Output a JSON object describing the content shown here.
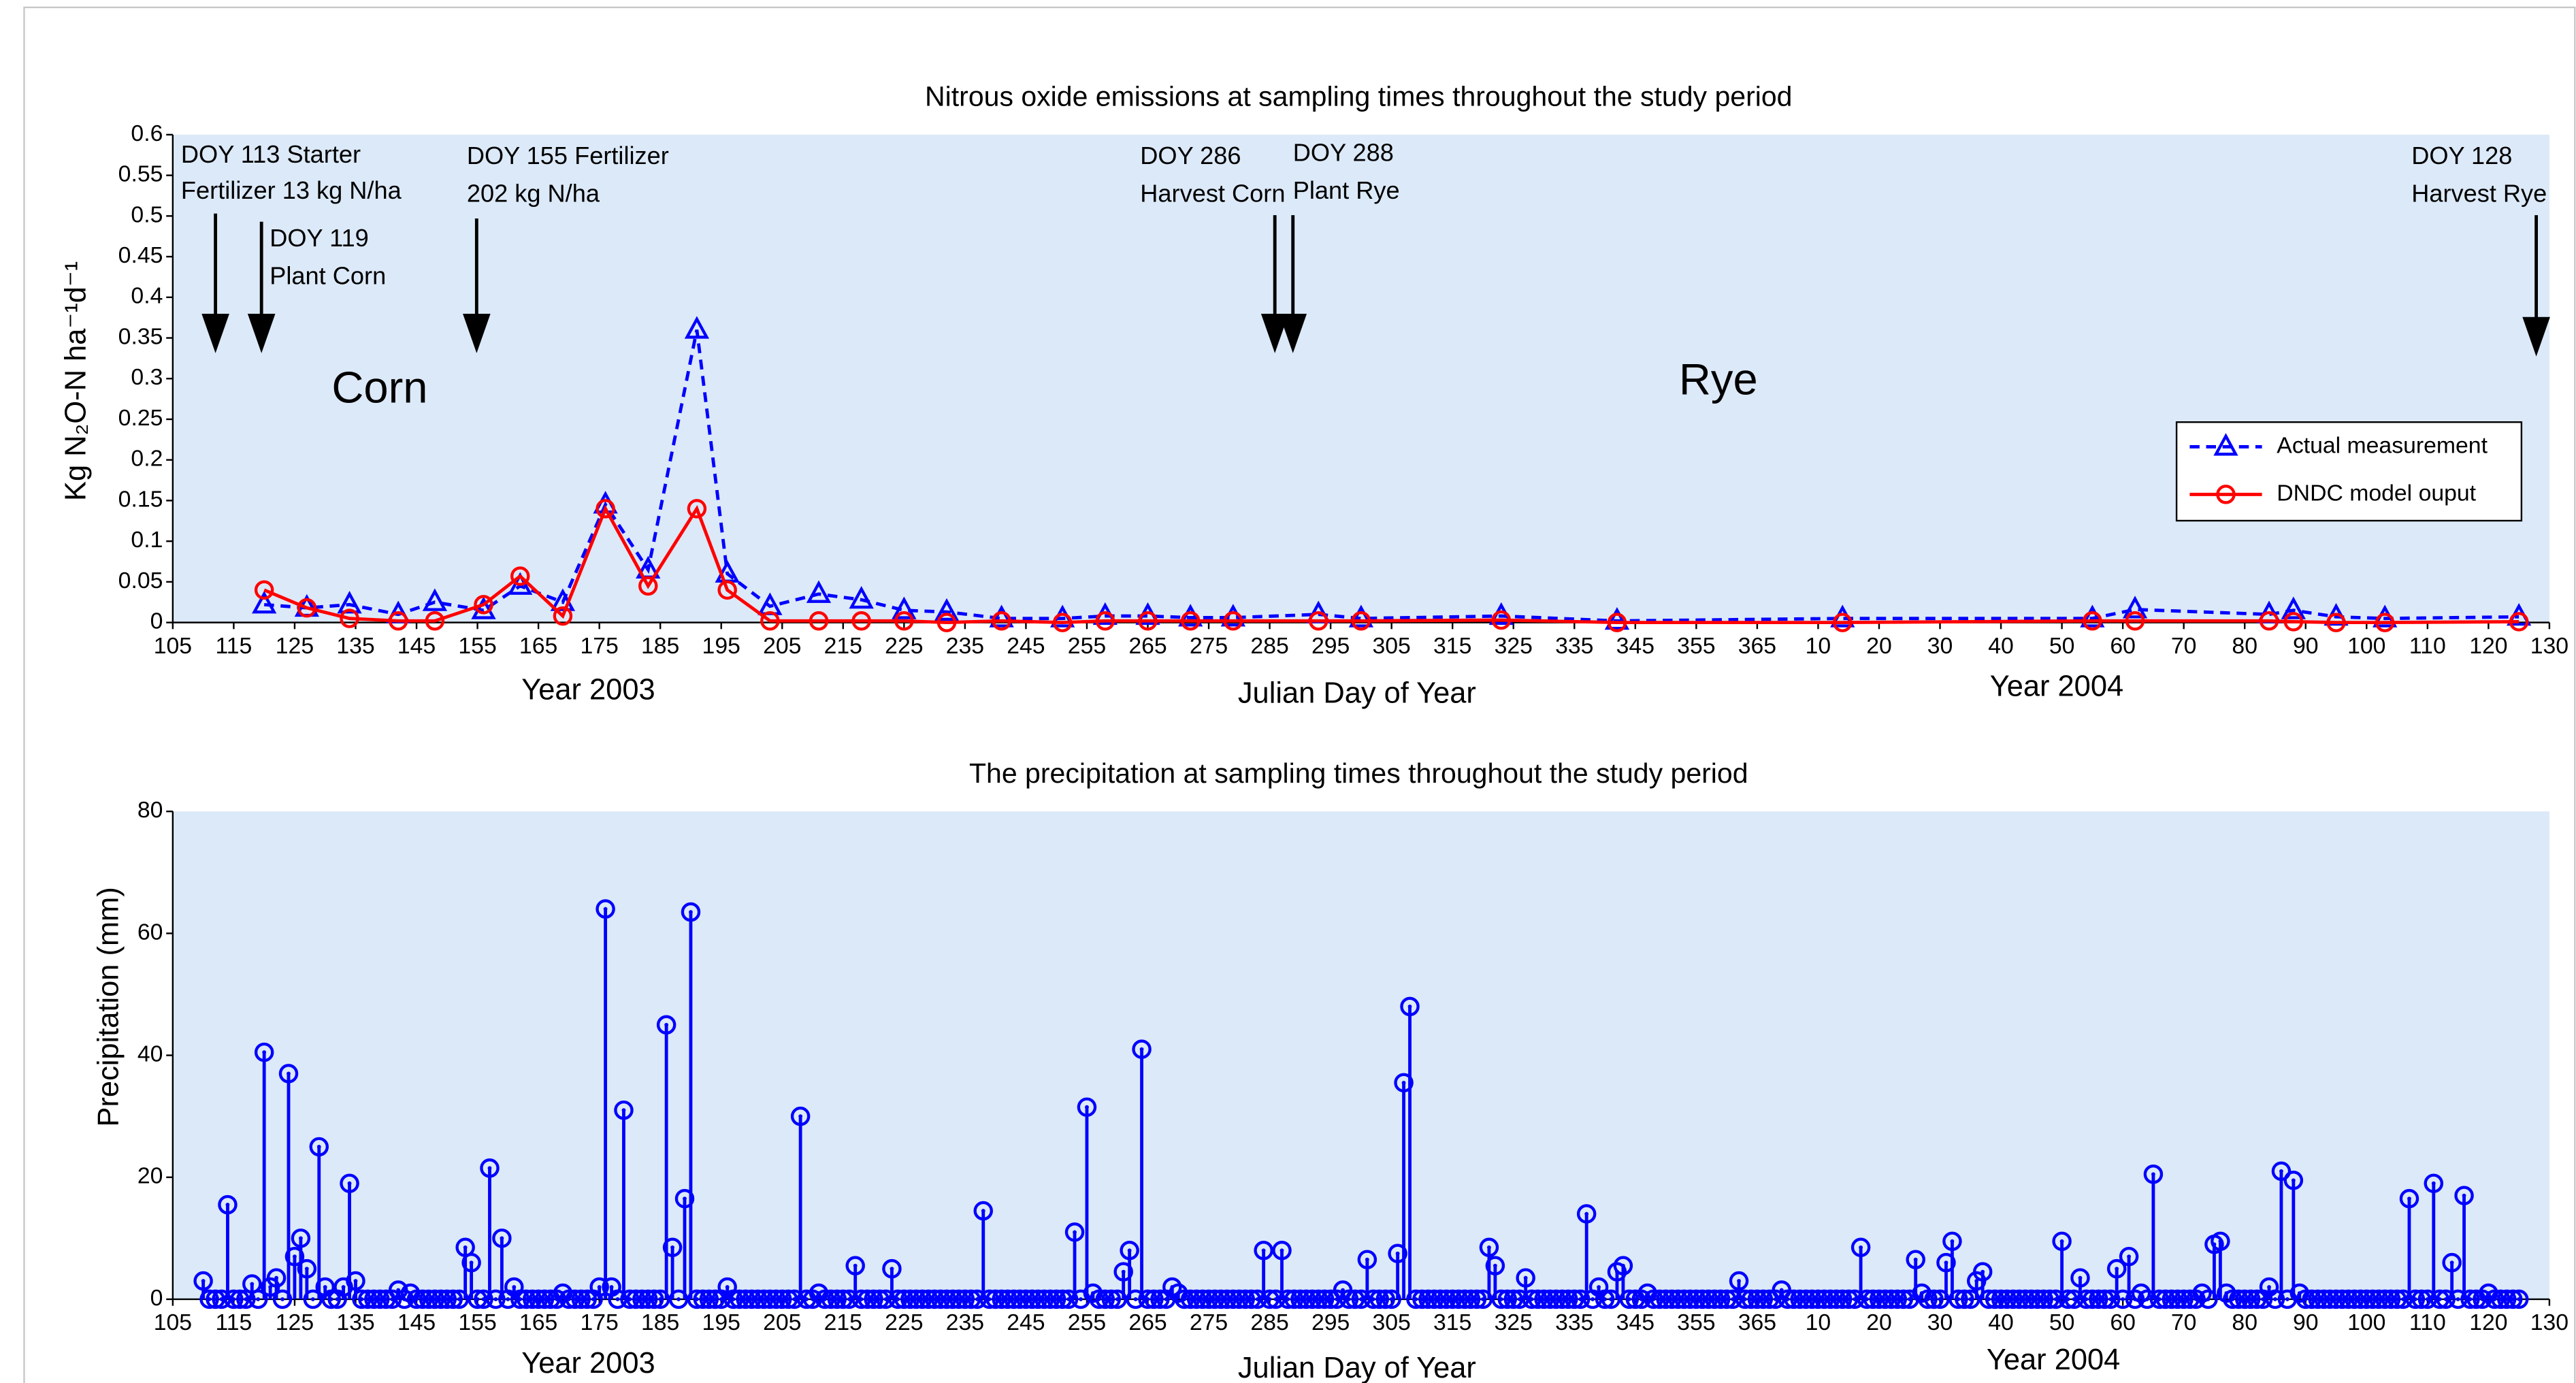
{
  "chart_data": [
    {
      "type": "line",
      "title": "Nitrous oxide emissions at sampling times throughout the study period",
      "xlabel": "Julian Day of Year",
      "ylabel": "Kg N₂O-N ha⁻¹d⁻¹",
      "period_labels": [
        "Year 2003",
        "Year 2004"
      ],
      "crop_labels": [
        "Corn",
        "Rye"
      ],
      "annotations": [
        {
          "lines": [
            "DOY 113 Starter",
            "Fertilizer 13 kg N/ha"
          ]
        },
        {
          "lines": [
            "DOY 119",
            "Plant Corn"
          ]
        },
        {
          "lines": [
            "DOY 155 Fertilizer",
            "202 kg N/ha"
          ]
        },
        {
          "lines": [
            "DOY 286",
            "Harvest Corn"
          ]
        },
        {
          "lines": [
            "DOY 288",
            "Plant Rye"
          ]
        },
        {
          "lines": [
            "DOY 128",
            "Harvest Rye"
          ]
        }
      ],
      "x": [
        120,
        127,
        134,
        142,
        148,
        156,
        162,
        169,
        176,
        183,
        191,
        196,
        203,
        211,
        218,
        225,
        232,
        241,
        251,
        258,
        265,
        272,
        279,
        293,
        300,
        323,
        342,
        379,
        420,
        427,
        449,
        453,
        460,
        468,
        490
      ],
      "series": [
        {
          "name": "Actual measurement",
          "color": "#0000ff",
          "marker": "triangle",
          "linestyle": "dashed",
          "values": [
            0.022,
            0.018,
            0.022,
            0.01,
            0.025,
            0.015,
            0.045,
            0.025,
            0.145,
            0.065,
            0.36,
            0.06,
            0.02,
            0.035,
            0.028,
            0.015,
            0.013,
            0.005,
            0.005,
            0.008,
            0.008,
            0.006,
            0.006,
            0.01,
            0.005,
            0.008,
            0.002,
            0.005,
            0.005,
            0.016,
            0.01,
            0.015,
            0.007,
            0.005,
            0.007
          ]
        },
        {
          "name": "DNDC model ouput",
          "color": "#ff0000",
          "marker": "circle",
          "linestyle": "solid",
          "values": [
            0.04,
            0.018,
            0.005,
            0.002,
            0.002,
            0.022,
            0.057,
            0.008,
            0.14,
            0.045,
            0.14,
            0.04,
            0.002,
            0.002,
            0.002,
            0.002,
            0,
            0.002,
            0,
            0.002,
            0.002,
            0.002,
            0.002,
            0.002,
            0.002,
            0.003,
            0,
            0,
            0.002,
            0.002,
            0.002,
            0.001,
            0,
            0,
            0.001
          ]
        }
      ],
      "xlim": [
        105,
        495
      ],
      "xticks": [
        105,
        115,
        125,
        135,
        145,
        155,
        165,
        175,
        185,
        195,
        205,
        215,
        225,
        235,
        245,
        255,
        265,
        275,
        285,
        295,
        305,
        315,
        325,
        335,
        345,
        355,
        365,
        {
          "value": 375,
          "label": "10"
        },
        {
          "value": 385,
          "label": "20"
        },
        {
          "value": 395,
          "label": "30"
        },
        {
          "value": 405,
          "label": "40"
        },
        {
          "value": 415,
          "label": "50"
        },
        {
          "value": 425,
          "label": "60"
        },
        {
          "value": 435,
          "label": "70"
        },
        {
          "value": 445,
          "label": "80"
        },
        {
          "value": 455,
          "label": "90"
        },
        {
          "value": 465,
          "label": "100"
        },
        {
          "value": 475,
          "label": "110"
        },
        {
          "value": 485,
          "label": "120"
        },
        {
          "value": 495,
          "label": "130"
        }
      ],
      "ylim": [
        0,
        0.6
      ],
      "yticks": [
        0,
        0.05,
        0.1,
        0.15,
        0.2,
        0.25,
        0.3,
        0.35,
        0.4,
        0.45,
        0.5,
        0.55,
        0.6
      ],
      "background": "#dce9f8",
      "legend": "right"
    },
    {
      "type": "stem",
      "title": "The precipitation at sampling times throughout the study period",
      "xlabel": "Julian Day of Year",
      "ylabel": "Precipitation (mm)",
      "period_labels": [
        "Year 2003",
        "Year 2004"
      ],
      "color": "#0000ff",
      "marker": "circle",
      "x": [
        110,
        111,
        112,
        113,
        114,
        115,
        116,
        117,
        118,
        119,
        120,
        121,
        122,
        123,
        124,
        125,
        126,
        127,
        128,
        129,
        130,
        131,
        132,
        133,
        134,
        135,
        136,
        137,
        138,
        139,
        140,
        141,
        142,
        143,
        144,
        145,
        146,
        147,
        148,
        149,
        150,
        151,
        152,
        153,
        154,
        155,
        156,
        157,
        158,
        159,
        160,
        161,
        162,
        163,
        164,
        165,
        166,
        167,
        168,
        169,
        170,
        171,
        172,
        173,
        174,
        175,
        176,
        177,
        178,
        179,
        180,
        181,
        182,
        183,
        184,
        185,
        186,
        187,
        188,
        189,
        190,
        191,
        192,
        193,
        194,
        195,
        196,
        197,
        198,
        199,
        200,
        201,
        202,
        203,
        204,
        205,
        206,
        207,
        208,
        209,
        210,
        211,
        212,
        213,
        214,
        215,
        216,
        217,
        218,
        219,
        220,
        221,
        222,
        223,
        224,
        225,
        226,
        227,
        228,
        229,
        230,
        231,
        232,
        233,
        234,
        235,
        236,
        237,
        238,
        239,
        240,
        241,
        242,
        243,
        244,
        245,
        246,
        247,
        248,
        249,
        250,
        251,
        252,
        253,
        254,
        255,
        256,
        257,
        258,
        259,
        260,
        261,
        262,
        263,
        264,
        265,
        266,
        267,
        268,
        269,
        270,
        271,
        272,
        273,
        274,
        275,
        276,
        277,
        278,
        279,
        280,
        281,
        282,
        283,
        284,
        285,
        286,
        287,
        288,
        289,
        290,
        291,
        292,
        293,
        294,
        295,
        296,
        297,
        298,
        299,
        300,
        301,
        302,
        303,
        304,
        305,
        306,
        307,
        308,
        309,
        310,
        311,
        312,
        313,
        314,
        315,
        316,
        317,
        318,
        319,
        320,
        321,
        322,
        323,
        324,
        325,
        326,
        327,
        328,
        329,
        330,
        331,
        332,
        333,
        334,
        335,
        336,
        337,
        338,
        339,
        340,
        341,
        342,
        343,
        344,
        345,
        346,
        347,
        348,
        349,
        350,
        351,
        352,
        353,
        354,
        355,
        356,
        357,
        358,
        359,
        360,
        361,
        362,
        363,
        364,
        365,
        366,
        367,
        368,
        369,
        370,
        371,
        372,
        373,
        374,
        375,
        376,
        377,
        378,
        379,
        380,
        381,
        382,
        383,
        384,
        385,
        386,
        387,
        388,
        389,
        390,
        391,
        392,
        393,
        394,
        395,
        396,
        397,
        398,
        399,
        400,
        401,
        402,
        403,
        404,
        405,
        406,
        407,
        408,
        409,
        410,
        411,
        412,
        413,
        414,
        415,
        416,
        417,
        418,
        419,
        420,
        421,
        422,
        423,
        424,
        425,
        426,
        427,
        428,
        429,
        430,
        431,
        432,
        433,
        434,
        435,
        436,
        437,
        438,
        439,
        440,
        441,
        442,
        443,
        444,
        445,
        446,
        447,
        448,
        449,
        450,
        451,
        452,
        453,
        454,
        455,
        456,
        457,
        458,
        459,
        460,
        461,
        462,
        463,
        464,
        465,
        466,
        467,
        468,
        469,
        470,
        471,
        472,
        473,
        474,
        475,
        476,
        477,
        478,
        479,
        480,
        481,
        482,
        483,
        484,
        485,
        486,
        487,
        488,
        489,
        490
      ],
      "values": [
        3,
        0,
        0,
        0,
        15.5,
        0,
        0,
        0,
        2.5,
        0,
        40.5,
        2,
        3.5,
        0,
        37,
        7,
        10,
        5,
        0,
        25,
        2,
        0,
        0,
        2,
        19,
        3,
        0,
        0,
        0,
        0,
        0,
        0,
        1.5,
        0,
        1,
        0,
        0,
        0,
        0,
        0,
        0,
        0,
        0,
        8.5,
        6,
        0,
        0,
        21.5,
        0,
        10,
        0,
        2,
        0,
        0,
        0,
        0,
        0,
        0,
        0,
        1,
        0,
        0,
        0,
        0,
        0,
        2,
        64,
        2,
        0,
        31,
        0,
        0,
        0,
        0,
        0,
        0,
        45,
        8.5,
        0,
        16.5,
        63.5,
        0,
        0,
        0,
        0,
        0,
        2,
        0,
        0,
        0,
        0,
        0,
        0,
        0,
        0,
        0,
        0,
        0,
        30,
        0,
        0,
        1,
        0,
        0,
        0,
        0,
        0,
        5.5,
        0,
        0,
        0,
        0,
        0,
        5,
        0,
        0,
        0,
        0,
        0,
        0,
        0,
        0,
        0,
        0,
        0,
        0,
        0,
        0,
        14.5,
        0,
        0,
        0,
        0,
        0,
        0,
        0,
        0,
        0,
        0,
        0,
        0,
        0,
        0,
        11,
        0,
        31.5,
        1,
        0,
        0,
        0,
        0,
        4.5,
        8,
        0,
        41,
        0,
        0,
        0,
        0,
        2,
        1,
        0,
        0,
        0,
        0,
        0,
        0,
        0,
        0,
        0,
        0,
        0,
        0,
        0,
        8,
        0,
        0,
        8,
        0,
        0,
        0,
        0,
        0,
        0,
        0,
        0,
        0,
        1.5,
        0,
        0,
        0,
        6.5,
        0,
        0,
        0,
        0,
        7.5,
        35.5,
        48,
        0,
        0,
        0,
        0,
        0,
        0,
        0,
        0,
        0,
        0,
        0,
        0,
        8.5,
        5.5,
        0,
        0,
        0,
        0,
        3.5,
        0,
        0,
        0,
        0,
        0,
        0,
        0,
        0,
        0,
        14,
        0,
        2,
        0,
        0,
        4.5,
        5.5,
        0,
        0,
        0,
        1,
        0,
        0,
        0,
        0,
        0,
        0,
        0,
        0,
        0,
        0,
        0,
        0,
        0,
        0,
        3,
        0,
        0,
        0,
        0,
        0,
        0,
        1.5,
        0,
        0,
        0,
        0,
        0,
        0,
        0,
        0,
        0,
        0,
        0,
        0,
        8.5,
        0,
        0,
        0,
        0,
        0,
        0,
        0,
        0,
        6.5,
        1,
        0,
        0,
        0,
        6,
        9.5,
        0,
        0,
        0,
        3,
        4.5,
        0,
        0,
        0,
        0,
        0,
        0,
        0,
        0,
        0,
        0,
        0,
        0,
        9.5,
        0,
        0,
        3.5,
        0,
        0,
        0,
        0,
        0,
        5,
        0,
        7,
        0,
        1,
        0,
        20.5,
        0,
        0,
        0,
        0,
        0,
        0,
        0,
        1,
        0,
        9,
        9.5,
        1,
        0,
        0,
        0,
        0,
        0,
        0,
        2,
        0,
        21,
        0,
        19.5,
        1,
        0,
        0,
        0,
        0,
        0,
        0,
        0,
        0,
        0,
        0,
        0,
        0,
        0,
        0,
        0,
        0,
        0,
        16.5,
        0,
        0,
        0,
        19,
        0,
        0,
        6,
        0,
        17,
        0,
        0,
        0,
        1,
        0,
        0,
        0,
        0,
        0
      ],
      "xlim": [
        105,
        495
      ],
      "xticks": [
        105,
        115,
        125,
        135,
        145,
        155,
        165,
        175,
        185,
        195,
        205,
        215,
        225,
        235,
        245,
        255,
        265,
        275,
        285,
        295,
        305,
        315,
        325,
        335,
        345,
        355,
        365,
        {
          "value": 375,
          "label": "10"
        },
        {
          "value": 385,
          "label": "20"
        },
        {
          "value": 395,
          "label": "30"
        },
        {
          "value": 405,
          "label": "40"
        },
        {
          "value": 415,
          "label": "50"
        },
        {
          "value": 425,
          "label": "60"
        },
        {
          "value": 435,
          "label": "70"
        },
        {
          "value": 445,
          "label": "80"
        },
        {
          "value": 455,
          "label": "90"
        },
        {
          "value": 465,
          "label": "100"
        },
        {
          "value": 475,
          "label": "110"
        },
        {
          "value": 485,
          "label": "120"
        },
        {
          "value": 495,
          "label": "130"
        }
      ],
      "ylim": [
        0,
        80
      ],
      "yticks": [
        0,
        20,
        40,
        60,
        80
      ],
      "background": "#dce9f8"
    }
  ]
}
